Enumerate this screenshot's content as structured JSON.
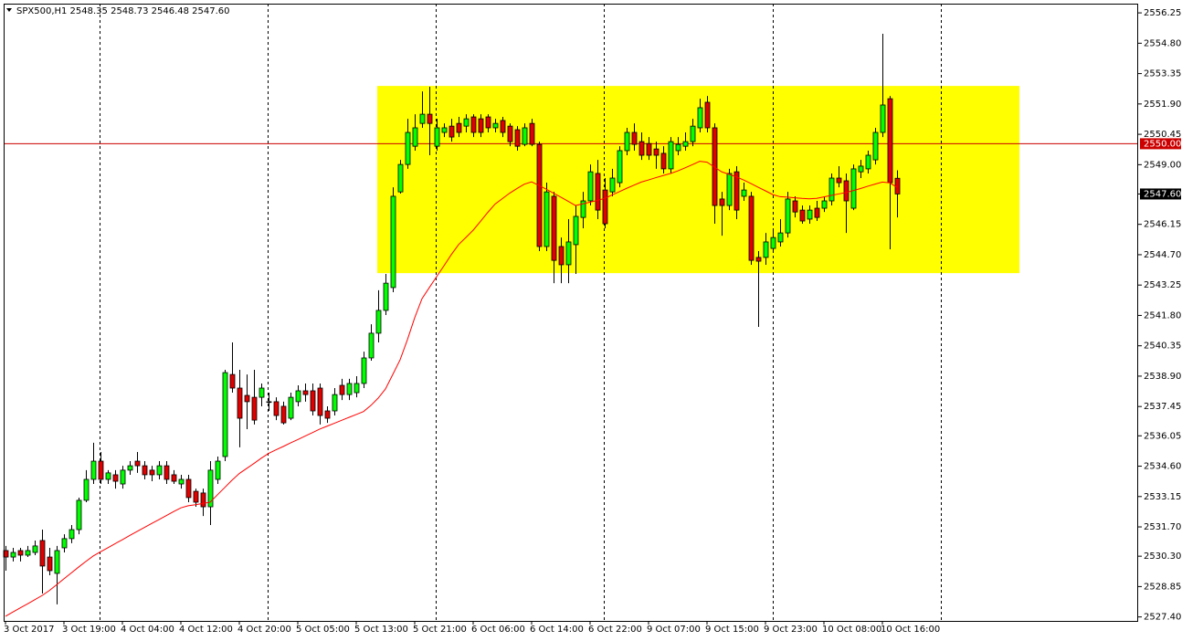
{
  "chart_data": {
    "type": "candlestick",
    "title": "SPX500,H1  2548.35 2548.73 2546.48 2547.60",
    "categories": [
      "3 Oct 2017",
      null,
      null,
      null,
      null,
      null,
      null,
      null,
      "3 Oct 19:00",
      null,
      null,
      null,
      null,
      null,
      null,
      null,
      "4 Oct 04:00",
      null,
      null,
      null,
      null,
      null,
      null,
      null,
      "4 Oct 12:00",
      null,
      null,
      null,
      null,
      null,
      null,
      null,
      "4 Oct 20:00",
      null,
      null,
      null,
      null,
      null,
      null,
      null,
      "5 Oct 05:00",
      null,
      null,
      null,
      null,
      null,
      null,
      null,
      "5 Oct 13:00",
      null,
      null,
      null,
      null,
      null,
      null,
      null,
      "5 Oct 21:00",
      null,
      null,
      null,
      null,
      null,
      null,
      null,
      "6 Oct 06:00",
      null,
      null,
      null,
      null,
      null,
      null,
      null,
      "6 Oct 14:00",
      null,
      null,
      null,
      null,
      null,
      null,
      null,
      "6 Oct 22:00",
      null,
      null,
      null,
      null,
      null,
      null,
      null,
      "9 Oct 07:00",
      null,
      null,
      null,
      null,
      null,
      null,
      null,
      "9 Oct 15:00",
      null,
      null,
      null,
      null,
      null,
      null,
      null,
      "9 Oct 23:00",
      null,
      null,
      null,
      null,
      null,
      null,
      null,
      "10 Oct 08:00",
      null,
      null,
      null,
      null,
      null,
      null,
      null,
      "10 Oct 16:00",
      null,
      null
    ],
    "open": [
      2530.57,
      2530.26,
      2530.57,
      2530.35,
      2530.48,
      2531.05,
      2530.26,
      2529.48,
      2530.7,
      2531.14,
      2531.57,
      2532.97,
      2533.97,
      2534.84,
      2533.97,
      2534.19,
      2533.75,
      2534.41,
      2534.84,
      2534.62,
      2534.41,
      2534.19,
      2534.62,
      2534.19,
      2533.75,
      2533.97,
      2533.4,
      2533.32,
      2532.66,
      2533.97,
      2535.06,
      2538.98,
      2538.33,
      2537.98,
      2537.89,
      2537.89,
      2537.68,
      2537.68,
      2537.46,
      2536.89,
      2537.68,
      2538.2,
      2538.2,
      2538.33,
      2537.24,
      2537.24,
      2538.46,
      2538.02,
      2538.11,
      2538.55,
      2539.77,
      2540.95,
      2542.04,
      2543.13,
      2547.7,
      2549.01,
      2549.88,
      2550.97,
      2551.41,
      2549.88,
      2550.54,
      2550.84,
      2550.97,
      2550.84,
      2551.28,
      2551.19,
      2551.28,
      2550.76,
      2551.11,
      2550.84,
      2550.67,
      2549.97,
      2550.97,
      2549.97,
      2545.09,
      2547.49,
      2545.09,
      2544.22,
      2545.18,
      2546.48,
      2547.27,
      2548.58,
      2547.79,
      2547.7,
      2548.14,
      2549.67,
      2550.54,
      2550.1,
      2550.01,
      2549.75,
      2549.54,
      2548.8,
      2549.67,
      2549.88,
      2550.1,
      2550.76,
      2551.98,
      2550.76,
      2547.36,
      2547.05,
      2548.66,
      2547.49,
      2547.49,
      2544.57,
      2544.57,
      2545.0,
      2545.31,
      2545.74,
      2547.27,
      2546.83,
      2546.4,
      2546.92,
      2546.92,
      2547.27,
      2548.36,
      2548.23,
      2546.92,
      2548.66,
      2548.8,
      2549.23,
      2550.54,
      2552.15,
      2548.35
    ],
    "high": [
      2530.79,
      2530.7,
      2530.7,
      2530.79,
      2531.05,
      2531.57,
      2530.7,
      2530.79,
      2531.35,
      2531.79,
      2533.1,
      2534.41,
      2535.72,
      2535.28,
      2534.41,
      2534.41,
      2534.62,
      2534.84,
      2535.28,
      2534.84,
      2534.62,
      2534.84,
      2534.84,
      2534.41,
      2534.19,
      2534.19,
      2533.53,
      2533.53,
      2534.84,
      2535.06,
      2539.2,
      2540.51,
      2539.2,
      2538.98,
      2539.2,
      2538.55,
      2538.11,
      2537.89,
      2537.68,
      2538.11,
      2538.46,
      2538.55,
      2538.55,
      2538.55,
      2537.46,
      2538.33,
      2538.77,
      2538.77,
      2538.9,
      2540.07,
      2541.38,
      2543.0,
      2543.78,
      2547.92,
      2549.23,
      2551.19,
      2551.41,
      2552.5,
      2552.72,
      2551.19,
      2550.97,
      2551.19,
      2551.28,
      2551.41,
      2551.41,
      2551.41,
      2551.41,
      2551.19,
      2551.28,
      2550.97,
      2550.84,
      2550.97,
      2551.19,
      2550.1,
      2548.14,
      2547.7,
      2545.52,
      2546.4,
      2547.05,
      2547.7,
      2549.01,
      2549.23,
      2548.36,
      2548.8,
      2549.88,
      2550.76,
      2550.97,
      2550.54,
      2550.32,
      2550.1,
      2549.88,
      2550.32,
      2550.32,
      2550.54,
      2551.19,
      2552.15,
      2552.28,
      2550.97,
      2547.7,
      2548.8,
      2548.93,
      2548.14,
      2547.7,
      2544.87,
      2545.74,
      2545.96,
      2546.4,
      2547.7,
      2547.49,
      2547.05,
      2547.05,
      2547.27,
      2547.49,
      2548.58,
      2548.93,
      2548.58,
      2549.01,
      2549.23,
      2549.67,
      2550.76,
      2555.25,
      2552.28,
      2548.73
    ],
    "low": [
      2529.61,
      2530.05,
      2530.05,
      2530.26,
      2530.35,
      2528.52,
      2529.39,
      2528.0,
      2530.48,
      2530.92,
      2531.35,
      2532.88,
      2533.75,
      2533.75,
      2533.75,
      2533.53,
      2533.53,
      2534.19,
      2534.28,
      2533.97,
      2533.88,
      2533.97,
      2533.75,
      2533.75,
      2533.53,
      2532.88,
      2532.66,
      2532.22,
      2531.79,
      2533.75,
      2534.84,
      2538.11,
      2535.5,
      2536.37,
      2536.59,
      2537.46,
      2537.24,
      2536.8,
      2536.59,
      2536.8,
      2537.46,
      2537.68,
      2537.02,
      2536.59,
      2536.67,
      2537.02,
      2537.76,
      2537.76,
      2537.89,
      2538.33,
      2539.64,
      2540.51,
      2541.82,
      2542.91,
      2547.62,
      2548.8,
      2549.67,
      2550.76,
      2549.45,
      2549.67,
      2550.32,
      2550.1,
      2550.32,
      2550.54,
      2550.32,
      2550.32,
      2550.54,
      2550.54,
      2550.32,
      2549.88,
      2549.67,
      2549.88,
      2549.88,
      2544.87,
      2544.87,
      2543.34,
      2543.34,
      2543.34,
      2543.78,
      2545.96,
      2547.05,
      2546.4,
      2545.96,
      2547.49,
      2547.92,
      2549.45,
      2549.67,
      2549.23,
      2549.23,
      2548.8,
      2548.58,
      2548.58,
      2549.45,
      2549.67,
      2549.88,
      2550.54,
      2550.54,
      2546.18,
      2545.61,
      2546.83,
      2546.4,
      2547.27,
      2544.22,
      2541.25,
      2544.22,
      2544.87,
      2545.09,
      2545.52,
      2546.48,
      2546.18,
      2546.18,
      2546.31,
      2546.74,
      2547.05,
      2547.92,
      2545.74,
      2546.83,
      2548.36,
      2548.58,
      2549.01,
      2550.32,
      2544.96,
      2546.48
    ],
    "close": [
      2530.26,
      2530.48,
      2530.35,
      2530.57,
      2530.79,
      2529.83,
      2529.61,
      2530.57,
      2531.14,
      2531.57,
      2532.97,
      2533.97,
      2534.84,
      2533.97,
      2534.28,
      2533.88,
      2534.41,
      2534.62,
      2534.62,
      2534.19,
      2534.19,
      2534.62,
      2533.97,
      2533.88,
      2533.97,
      2533.1,
      2532.88,
      2532.66,
      2534.41,
      2534.84,
      2539.07,
      2538.33,
      2536.89,
      2537.68,
      2536.8,
      2538.33,
      2537.68,
      2537.02,
      2536.67,
      2537.89,
      2538.2,
      2538.02,
      2537.24,
      2537.02,
      2536.89,
      2538.02,
      2538.02,
      2538.55,
      2538.55,
      2539.77,
      2540.95,
      2542.04,
      2543.34,
      2547.49,
      2549.01,
      2550.54,
      2550.76,
      2551.41,
      2550.97,
      2550.76,
      2550.76,
      2550.32,
      2550.54,
      2551.19,
      2550.54,
      2550.54,
      2550.76,
      2550.97,
      2550.54,
      2550.1,
      2549.88,
      2550.76,
      2549.97,
      2545.09,
      2547.7,
      2544.43,
      2544.22,
      2545.31,
      2546.53,
      2547.27,
      2548.66,
      2546.83,
      2546.18,
      2548.36,
      2549.67,
      2550.54,
      2549.97,
      2549.45,
      2549.45,
      2549.45,
      2548.8,
      2550.1,
      2549.97,
      2550.1,
      2550.84,
      2551.72,
      2550.76,
      2547.05,
      2547.05,
      2548.58,
      2546.83,
      2547.79,
      2544.43,
      2544.39,
      2545.31,
      2545.52,
      2545.74,
      2547.36,
      2546.74,
      2546.31,
      2546.83,
      2546.48,
      2547.27,
      2548.36,
      2548.14,
      2547.27,
      2548.8,
      2548.93,
      2549.45,
      2550.54,
      2551.85,
      2548.14,
      2547.6
    ],
    "up_color": "#00ff00",
    "down_color": "#e00000",
    "ma": {
      "color": "#ff0000",
      "values": [
        2527.43,
        2527.63,
        2527.83,
        2528.02,
        2528.22,
        2528.42,
        2528.66,
        2528.94,
        2529.22,
        2529.5,
        2529.78,
        2530.05,
        2530.31,
        2530.51,
        2530.7,
        2530.9,
        2531.09,
        2531.29,
        2531.48,
        2531.67,
        2531.86,
        2532.05,
        2532.24,
        2532.43,
        2532.61,
        2532.71,
        2532.76,
        2532.82,
        2532.88,
        2533.23,
        2533.58,
        2533.93,
        2534.25,
        2534.49,
        2534.73,
        2534.98,
        2535.21,
        2535.38,
        2535.54,
        2535.71,
        2535.87,
        2536.04,
        2536.2,
        2536.37,
        2536.51,
        2536.65,
        2536.79,
        2536.93,
        2537.07,
        2537.21,
        2537.5,
        2537.85,
        2538.29,
        2538.98,
        2539.68,
        2540.64,
        2541.69,
        2542.6,
        2543.13,
        2543.65,
        2544.17,
        2544.7,
        2545.18,
        2545.52,
        2545.87,
        2546.29,
        2546.72,
        2547.12,
        2547.38,
        2547.64,
        2547.86,
        2548.07,
        2548.18,
        2548.01,
        2547.83,
        2547.64,
        2547.45,
        2547.25,
        2547.05,
        2547.13,
        2547.21,
        2547.29,
        2547.39,
        2547.55,
        2547.71,
        2547.87,
        2548.02,
        2548.17,
        2548.27,
        2548.38,
        2548.48,
        2548.58,
        2548.7,
        2548.85,
        2549.0,
        2549.16,
        2549.12,
        2548.89,
        2548.66,
        2548.54,
        2548.42,
        2548.27,
        2548.1,
        2547.92,
        2547.75,
        2547.57,
        2547.47,
        2547.45,
        2547.42,
        2547.39,
        2547.37,
        2547.39,
        2547.46,
        2547.53,
        2547.6,
        2547.67,
        2547.76,
        2547.86,
        2547.97,
        2548.07,
        2548.17,
        2548.13,
        2547.92
      ]
    },
    "zone": {
      "color": "#ffff00",
      "high": 2552.76,
      "low": 2543.82
    },
    "hline": {
      "value": 2550,
      "label": "2550.00",
      "color": "#cc0000"
    },
    "last_price": {
      "value": 2547.6,
      "label": "2547.60"
    },
    "ylim": [
      2527.21,
      2556.69
    ],
    "yticks": [
      2556.25,
      {
        "value": 2554.8,
        "label": "2554.80"
      },
      2553.35,
      {
        "value": 2551.9,
        "label": "2551.90"
      },
      2550.45,
      {
        "value": 2549,
        "label": "2549.00"
      },
      {
        "value": 2547.6,
        "label": "2547.60"
      },
      2546.15,
      {
        "value": 2544.7,
        "label": "2544.70"
      },
      2543.25,
      {
        "value": 2541.8,
        "label": "2541.80"
      },
      2540.35,
      {
        "value": 2538.9,
        "label": "2538.90"
      },
      2537.45,
      2536.05,
      {
        "value": 2534.6,
        "label": "2534.60"
      },
      2533.15,
      {
        "value": 2531.7,
        "label": "2531.70"
      },
      {
        "value": 2530.3,
        "label": "2530.30"
      },
      2528.85,
      {
        "value": 2527.4,
        "label": "2527.40"
      }
    ],
    "grid": false
  }
}
